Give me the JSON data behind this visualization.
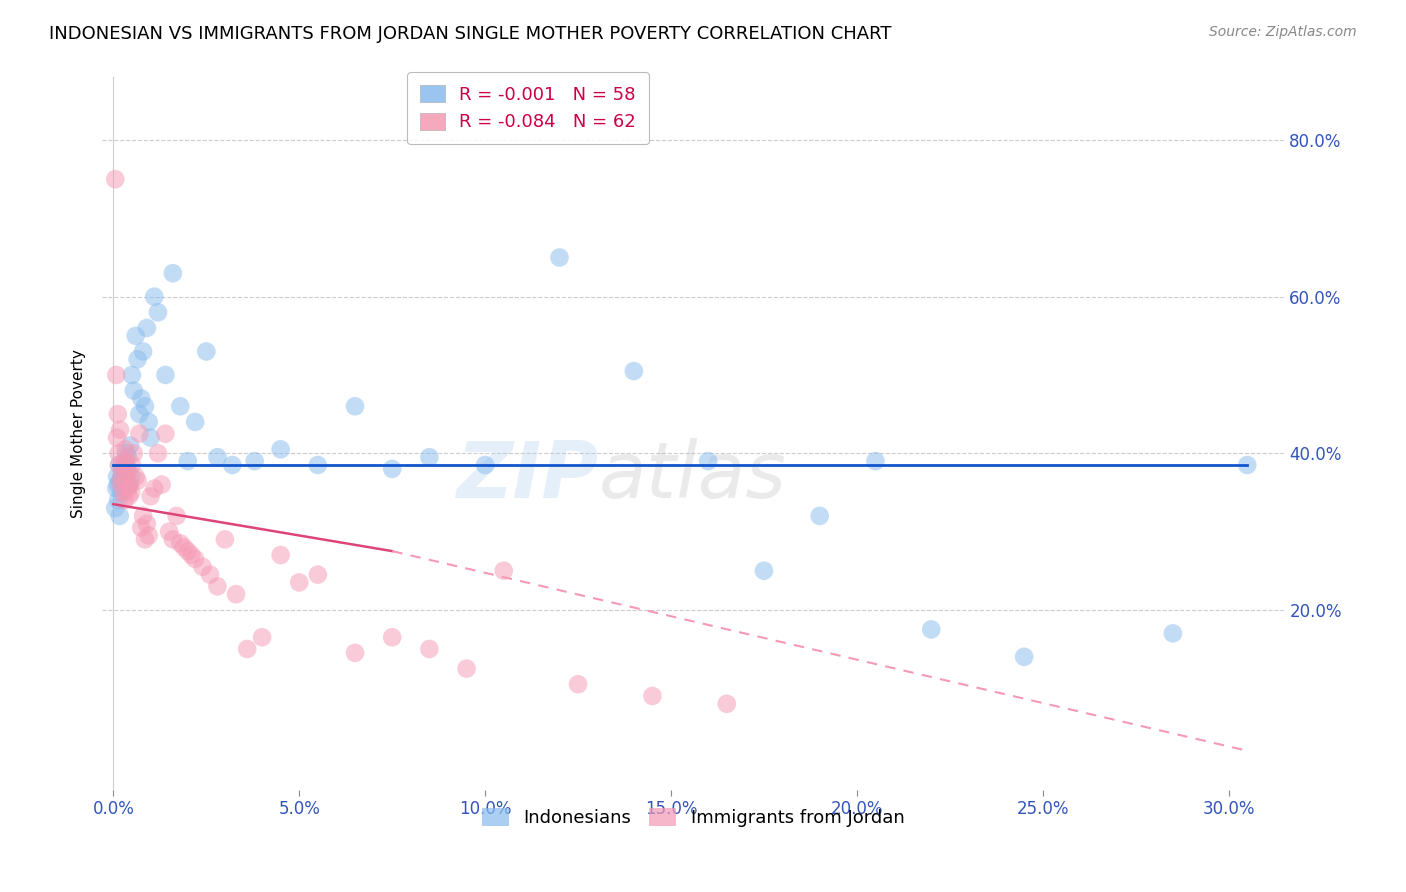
{
  "title": "INDONESIAN VS IMMIGRANTS FROM JORDAN SINGLE MOTHER POVERTY CORRELATION CHART",
  "source": "Source: ZipAtlas.com",
  "ylabel": "Single Mother Poverty",
  "x_tick_labels": [
    "0.0%",
    "5.0%",
    "10.0%",
    "15.0%",
    "20.0%",
    "25.0%",
    "30.0%"
  ],
  "x_tick_vals": [
    0.0,
    5.0,
    10.0,
    15.0,
    20.0,
    25.0,
    30.0
  ],
  "y_tick_labels": [
    "20.0%",
    "40.0%",
    "60.0%",
    "80.0%"
  ],
  "y_tick_vals": [
    20.0,
    40.0,
    60.0,
    80.0
  ],
  "xlim": [
    -0.3,
    31.5
  ],
  "ylim": [
    -3.0,
    88.0
  ],
  "legend_label_indonesians": "Indonesians",
  "legend_label_jordan": "Immigrants from Jordan",
  "blue_color": "#88bbee",
  "pink_color": "#f599b4",
  "regression_blue_color": "#1155cc",
  "regression_pink_solid_color": "#dd4477",
  "regression_pink_dash_color": "#f599b4",
  "watermark_zip": "ZIP",
  "watermark_atlas": "atlas",
  "indonesian_x": [
    0.05,
    0.08,
    0.1,
    0.12,
    0.13,
    0.15,
    0.17,
    0.18,
    0.2,
    0.22,
    0.25,
    0.28,
    0.3,
    0.32,
    0.35,
    0.38,
    0.4,
    0.43,
    0.45,
    0.48,
    0.5,
    0.55,
    0.6,
    0.65,
    0.7,
    0.75,
    0.8,
    0.85,
    0.9,
    0.95,
    1.0,
    1.1,
    1.2,
    1.4,
    1.6,
    1.8,
    2.0,
    2.2,
    2.5,
    2.8,
    3.2,
    3.8,
    4.5,
    5.5,
    6.5,
    7.5,
    8.5,
    10.0,
    12.0,
    14.0,
    16.0,
    17.5,
    19.0,
    20.5,
    22.0,
    24.5,
    28.5,
    30.5
  ],
  "indonesian_y": [
    33.0,
    35.5,
    37.0,
    36.0,
    34.0,
    38.5,
    32.0,
    36.5,
    35.0,
    37.0,
    38.0,
    36.0,
    39.0,
    37.5,
    40.0,
    38.0,
    39.5,
    36.0,
    41.0,
    37.0,
    50.0,
    48.0,
    55.0,
    52.0,
    45.0,
    47.0,
    53.0,
    46.0,
    56.0,
    44.0,
    42.0,
    60.0,
    58.0,
    50.0,
    63.0,
    46.0,
    39.0,
    44.0,
    53.0,
    39.5,
    38.5,
    39.0,
    40.5,
    38.5,
    46.0,
    38.0,
    39.5,
    38.5,
    65.0,
    50.5,
    39.0,
    25.0,
    32.0,
    39.0,
    17.5,
    14.0,
    17.0,
    38.5
  ],
  "jordan_x": [
    0.05,
    0.08,
    0.1,
    0.12,
    0.14,
    0.16,
    0.18,
    0.2,
    0.22,
    0.24,
    0.26,
    0.28,
    0.3,
    0.32,
    0.34,
    0.36,
    0.38,
    0.4,
    0.42,
    0.45,
    0.48,
    0.5,
    0.55,
    0.6,
    0.65,
    0.7,
    0.75,
    0.8,
    0.85,
    0.9,
    0.95,
    1.0,
    1.1,
    1.2,
    1.3,
    1.4,
    1.5,
    1.6,
    1.7,
    1.8,
    1.9,
    2.0,
    2.1,
    2.2,
    2.4,
    2.6,
    2.8,
    3.0,
    3.3,
    3.6,
    4.0,
    4.5,
    5.0,
    5.5,
    6.5,
    7.5,
    8.5,
    9.5,
    10.5,
    12.5,
    14.5,
    16.5
  ],
  "jordan_y": [
    75.0,
    50.0,
    42.0,
    45.0,
    40.0,
    38.5,
    43.0,
    36.0,
    37.0,
    38.5,
    36.5,
    35.0,
    34.0,
    40.5,
    39.0,
    38.0,
    37.5,
    35.5,
    34.5,
    36.0,
    35.0,
    38.5,
    40.0,
    37.0,
    36.5,
    42.5,
    30.5,
    32.0,
    29.0,
    31.0,
    29.5,
    34.5,
    35.5,
    40.0,
    36.0,
    42.5,
    30.0,
    29.0,
    32.0,
    28.5,
    28.0,
    27.5,
    27.0,
    26.5,
    25.5,
    24.5,
    23.0,
    29.0,
    22.0,
    15.0,
    16.5,
    27.0,
    23.5,
    24.5,
    14.5,
    16.5,
    15.0,
    12.5,
    25.0,
    10.5,
    9.0,
    8.0
  ],
  "blue_reg_x0": 0.0,
  "blue_reg_x1": 30.5,
  "blue_reg_y0": 38.5,
  "blue_reg_y1": 38.5,
  "pink_solid_x0": 0.0,
  "pink_solid_x1": 7.5,
  "pink_solid_y0": 33.5,
  "pink_solid_y1": 27.5,
  "pink_dash_x0": 7.5,
  "pink_dash_x1": 30.5,
  "pink_dash_y0": 27.5,
  "pink_dash_y1": 2.0
}
